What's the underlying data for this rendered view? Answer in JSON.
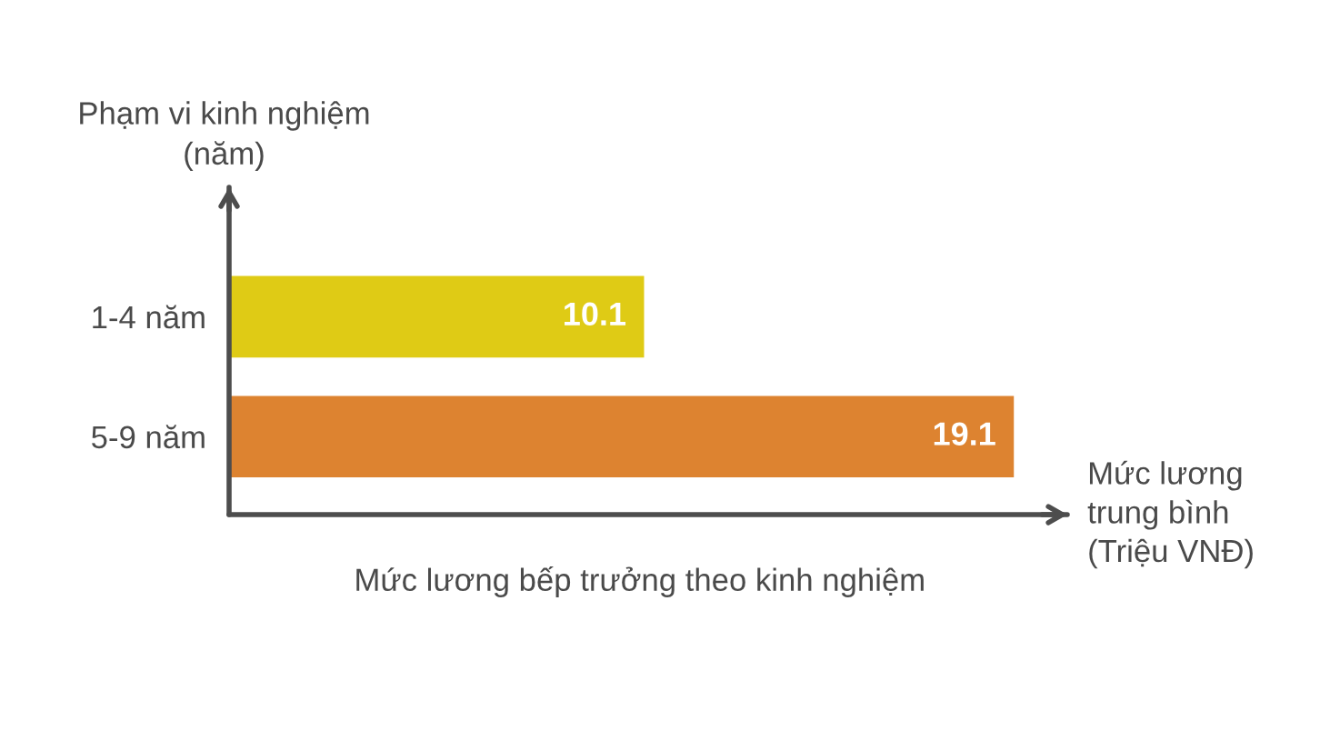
{
  "chart_data": {
    "type": "bar",
    "orientation": "horizontal",
    "title": "Mức lương bếp trưởng theo kinh nghiệm",
    "ylabel": "Phạm vi kinh nghiệm\n(năm)",
    "xlabel": "Mức lương\ntrung bình\n(Triệu VNĐ)",
    "categories": [
      "1-4 năm",
      "5-9 năm"
    ],
    "values": [
      10.1,
      19.1
    ],
    "colors": [
      "#dfcb15",
      "#dd8330"
    ],
    "xlim": [
      0,
      20.4
    ],
    "tick_labels": "y",
    "data_labels": true
  }
}
